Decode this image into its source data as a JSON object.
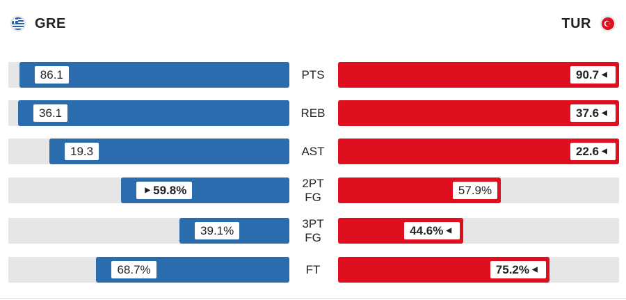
{
  "teams": {
    "home": {
      "code": "GRE",
      "color": "#2a6cae",
      "flag_icon": "greece-flag-icon"
    },
    "away": {
      "code": "TUR",
      "color": "#df0f1f",
      "flag_icon": "turkey-flag-icon"
    }
  },
  "chart_data": {
    "type": "bar",
    "orientation": "horizontal-diverging",
    "categories": [
      "PTS",
      "REB",
      "AST",
      "2PT FG",
      "3PT FG",
      "FT"
    ],
    "series": [
      {
        "name": "GRE",
        "values": [
          86.1,
          36.1,
          19.3,
          59.8,
          39.1,
          68.7
        ],
        "labels": [
          "86.1",
          "36.1",
          "19.3",
          "59.8%",
          "39.1%",
          "68.7%"
        ],
        "color": "#2a6cae"
      },
      {
        "name": "TUR",
        "values": [
          90.7,
          37.6,
          22.6,
          57.9,
          44.6,
          75.2
        ],
        "labels": [
          "90.7",
          "37.6",
          "22.6",
          "57.9%",
          "44.6%",
          "75.2%"
        ],
        "color": "#df0f1f"
      }
    ],
    "leader": [
      "TUR",
      "TUR",
      "TUR",
      "GRE",
      "TUR",
      "TUR"
    ],
    "category_lines": [
      [
        "PTS"
      ],
      [
        "REB"
      ],
      [
        "AST"
      ],
      [
        "2PT",
        "FG"
      ],
      [
        "3PT",
        "FG"
      ],
      [
        "FT"
      ]
    ],
    "track_color": "#e6e6e6"
  }
}
